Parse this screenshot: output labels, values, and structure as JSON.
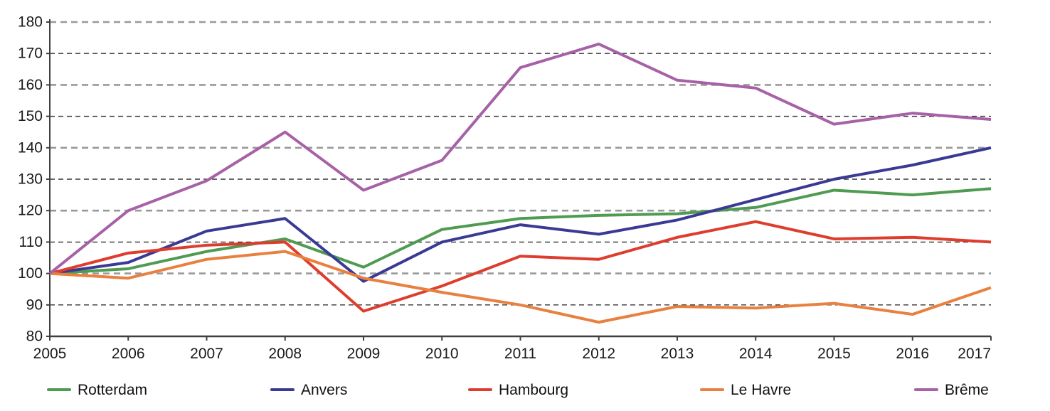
{
  "chart_data": {
    "type": "line",
    "title": "",
    "x_tick_labels": [
      "2005",
      "2006",
      "2007",
      "2008",
      "2009",
      "2010",
      "2011",
      "2012",
      "2013",
      "2014",
      "2015",
      "2016",
      "2017"
    ],
    "y_tick_labels": [
      "80",
      "90",
      "100",
      "110",
      "120",
      "130",
      "140",
      "150",
      "160",
      "170",
      "180"
    ],
    "ylim": [
      80,
      180
    ],
    "y_step": 10,
    "grid": {
      "style": "horizontal-dashed",
      "major_color": "#999999",
      "minor_color": "#333333"
    },
    "axis_color": "#3f3f3f",
    "text_color": "#1a1a1a",
    "legend_position": "bottom",
    "series": [
      {
        "name": "Rotterdam",
        "color": "#4f9b51",
        "values": [
          100,
          101.5,
          107,
          111,
          102,
          114,
          117.5,
          118.5,
          119,
          121,
          126.5,
          125,
          127
        ]
      },
      {
        "name": "Anvers",
        "color": "#3a3a95",
        "values": [
          100,
          103.5,
          113.5,
          117.5,
          97.5,
          110,
          115.5,
          112.5,
          117,
          123.5,
          130,
          134.5,
          140
        ]
      },
      {
        "name": "Hambourg",
        "color": "#de3d2d",
        "values": [
          100,
          106.5,
          109,
          110,
          88,
          96,
          105.5,
          104.5,
          111.5,
          116.5,
          111,
          111.5,
          110
        ]
      },
      {
        "name": "Le Havre",
        "color": "#e8803f",
        "values": [
          100,
          98.5,
          104.5,
          107,
          98.5,
          94,
          90,
          84.5,
          89.5,
          89,
          90.5,
          87,
          95.5
        ]
      },
      {
        "name": "Brême",
        "color": "#a761a7",
        "values": [
          100,
          120,
          129.5,
          145,
          126.5,
          136,
          165.5,
          173,
          161.5,
          159,
          147.5,
          151,
          149
        ]
      }
    ]
  }
}
